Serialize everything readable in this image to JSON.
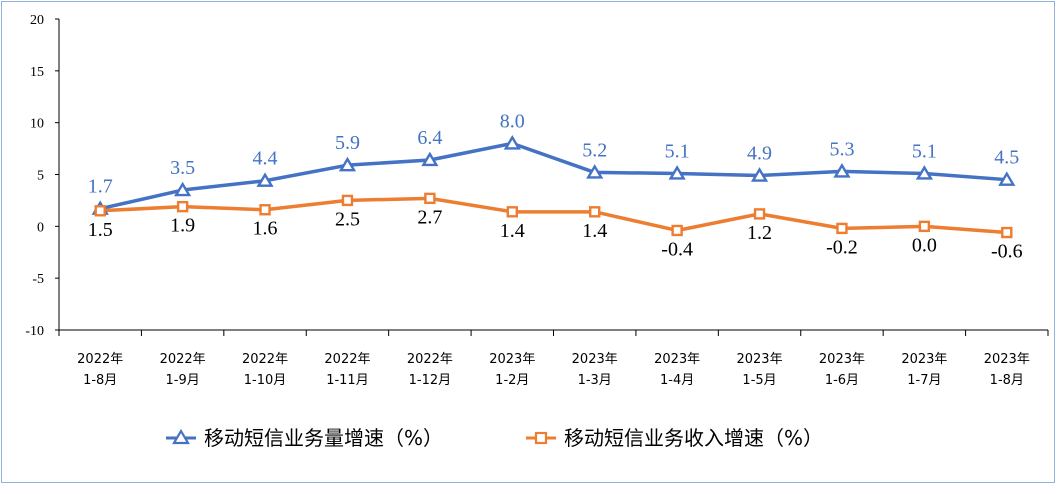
{
  "chart_data": {
    "type": "line",
    "categories": [
      [
        "2022年",
        "1-8月"
      ],
      [
        "2022年",
        "1-9月"
      ],
      [
        "2022年",
        "1-10月"
      ],
      [
        "2022年",
        "1-11月"
      ],
      [
        "2022年",
        "1-12月"
      ],
      [
        "2023年",
        "1-2月"
      ],
      [
        "2023年",
        "1-3月"
      ],
      [
        "2023年",
        "1-4月"
      ],
      [
        "2023年",
        "1-5月"
      ],
      [
        "2023年",
        "1-6月"
      ],
      [
        "2023年",
        "1-7月"
      ],
      [
        "2023年",
        "1-8月"
      ]
    ],
    "series": [
      {
        "name": "移动短信业务量增速（%）",
        "color": "#4472c4",
        "marker": "triangle",
        "values": [
          1.7,
          3.5,
          4.4,
          5.9,
          6.4,
          8.0,
          5.2,
          5.1,
          4.9,
          5.3,
          5.1,
          4.5
        ],
        "labels": [
          "1.7",
          "3.5",
          "4.4",
          "5.9",
          "6.4",
          "8.0",
          "5.2",
          "5.1",
          "4.9",
          "5.3",
          "5.1",
          "4.5"
        ]
      },
      {
        "name": "移动短信业务收入增速（%）",
        "color": "#ed7d31",
        "marker": "square",
        "values": [
          1.5,
          1.9,
          1.6,
          2.5,
          2.7,
          1.4,
          1.4,
          -0.4,
          1.2,
          -0.2,
          0.0,
          -0.6
        ],
        "labels": [
          "1.5",
          "1.9",
          "1.6",
          "2.5",
          "2.7",
          "1.4",
          "1.4",
          "-0.4",
          "1.2",
          "-0.2",
          "0.0",
          "-0.6"
        ]
      }
    ],
    "yticks": [
      "20",
      "15",
      "10",
      "5",
      "0",
      "-5",
      "-10"
    ],
    "ylim": [
      -10,
      20
    ],
    "grid": false,
    "legend": "bottom"
  }
}
